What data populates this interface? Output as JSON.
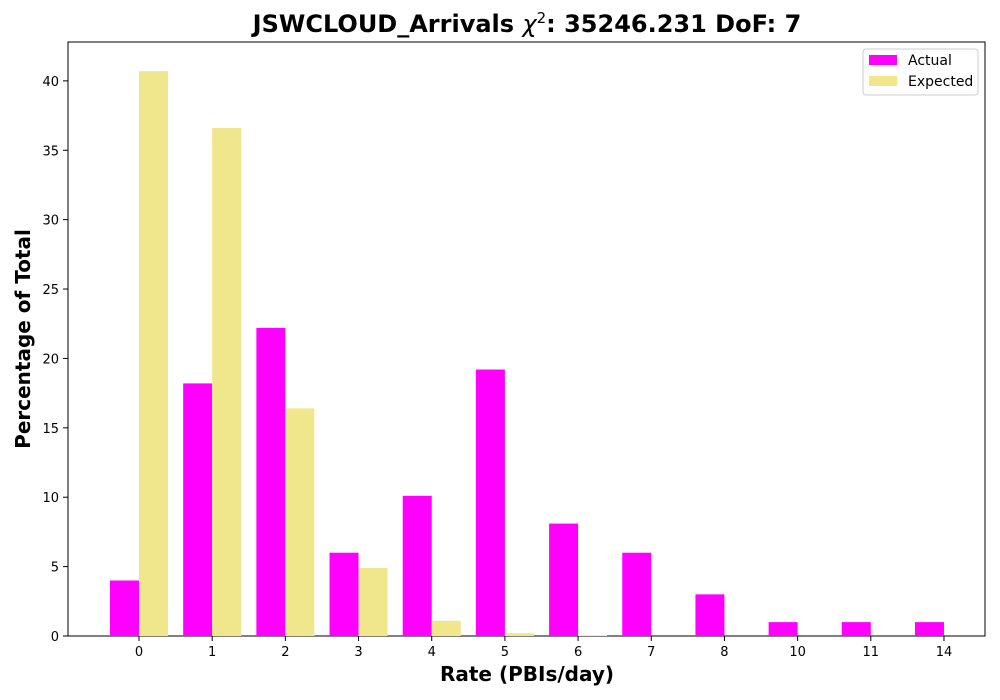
{
  "chart_data": {
    "type": "bar",
    "title_main": "JSWCLOUD_Arrivals ",
    "title_chi": "χ",
    "title_sup": "2",
    "title_rest": ": 35246.231 DoF: 7",
    "xlabel": "Rate (PBIs/day)",
    "ylabel": "Percentage of Total",
    "categories": [
      "0",
      "1",
      "2",
      "3",
      "4",
      "5",
      "6",
      "7",
      "8",
      "10",
      "11",
      "14"
    ],
    "series": [
      {
        "name": "Actual",
        "color": "#ff00ff",
        "values": [
          4.0,
          18.2,
          22.2,
          6.0,
          10.1,
          19.2,
          8.1,
          6.0,
          3.0,
          1.0,
          1.0,
          1.0
        ]
      },
      {
        "name": "Expected",
        "color": "#f0e68c",
        "values": [
          40.7,
          36.6,
          16.4,
          4.9,
          1.1,
          0.2,
          0.05,
          0.0,
          0.0,
          0.0,
          0.0,
          0.0
        ]
      }
    ],
    "ylim": [
      0,
      42.8
    ],
    "yticks": [
      "0",
      "5",
      "10",
      "15",
      "20",
      "25",
      "30",
      "35",
      "40"
    ],
    "legend_position": "top-right",
    "grid": false
  }
}
